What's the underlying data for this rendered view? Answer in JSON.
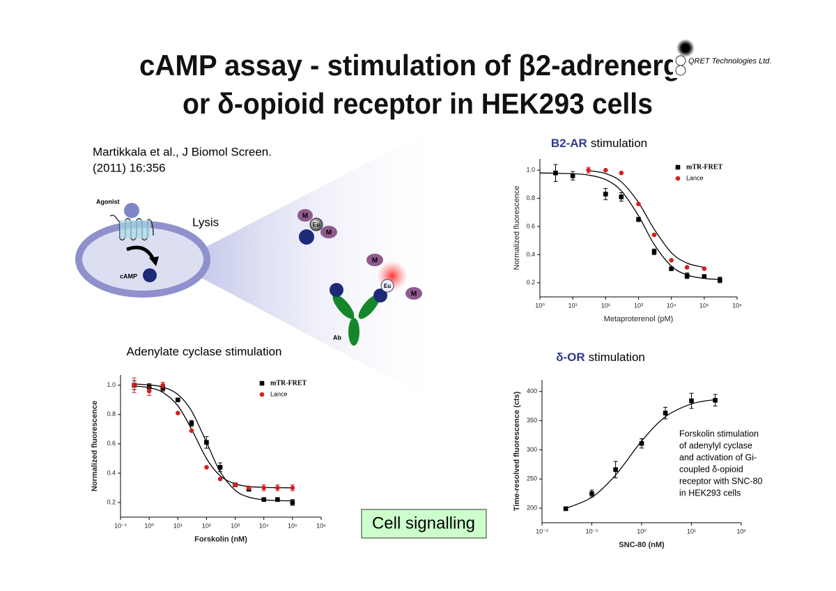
{
  "title_lines": [
    "cAMP assay - stimulation of β2-adrenergic",
    "or δ-opioid receptor in HEK293 cells"
  ],
  "logo": "QRET Technologies Ltd.",
  "citation_lines": [
    "Martikkala et al., J Biomol Screen.",
    "(2011) 16:356"
  ],
  "diagram": {
    "agonist": "Agonist",
    "lysis": "Lysis",
    "camp": "cAMP",
    "complex1": [
      "M",
      "Eu",
      "M"
    ],
    "complex2": [
      "M",
      "Eu",
      "M"
    ],
    "antibody": "Ab"
  },
  "note_lines": [
    "Forskolin stimulation",
    "of adenylyl cyclase",
    "and activation of Gi-",
    "coupled δ-opioid",
    "receptor with SNC-80",
    "in HEK293 cells"
  ],
  "button": "Cell signalling",
  "chart_data": [
    {
      "type": "scatter",
      "title_highlight": "B2-AR",
      "title": "stimulation",
      "x_label": "Metaproterenol (pM)",
      "y_label": "Normalized fluorescence",
      "xscale": "log",
      "xlim": [
        1,
        1000000
      ],
      "xticks": [
        {
          "value": 1,
          "label": "10⁰"
        },
        {
          "value": 10,
          "label": "10¹"
        },
        {
          "value": 100,
          "label": "10²"
        },
        {
          "value": 1000,
          "label": "10³"
        },
        {
          "value": 10000,
          "label": "10⁴"
        },
        {
          "value": 100000,
          "label": "10⁵"
        },
        {
          "value": 1000000,
          "label": "10⁶"
        }
      ],
      "ylim": [
        0.1,
        1.08
      ],
      "yticks": [
        0.2,
        0.4,
        0.6,
        0.8,
        {
          "value": 1,
          "label": "1.0"
        }
      ],
      "legend": "upper right",
      "series": [
        {
          "name": "mTR-FRET",
          "color": "#000000",
          "marker": "square",
          "x": [
            3,
            10,
            100,
            300,
            1000,
            3000,
            10000,
            30000,
            100000,
            300000
          ],
          "values": [
            0.98,
            0.96,
            0.83,
            0.81,
            0.65,
            0.42,
            0.3,
            0.25,
            0.245,
            0.22
          ],
          "errors": [
            0.06,
            0.03,
            0.04,
            0.03,
            0.015,
            0.02,
            0.01,
            0.02,
            0.01,
            0.02
          ],
          "fit": {
            "x": [
              1,
              3,
              10,
              30,
              100,
              300,
              1000,
              3000,
              10000,
              30000,
              100000,
              300000
            ],
            "values": [
              0.98,
              0.978,
              0.975,
              0.965,
              0.933,
              0.853,
              0.676,
              0.473,
              0.319,
              0.256,
              0.231,
              0.224
            ]
          }
        },
        {
          "name": "Lance",
          "color": "#d42020",
          "marker": "circle",
          "x": [
            30,
            100,
            300,
            1000,
            3000,
            10000,
            30000,
            100000
          ],
          "values": [
            1.0,
            1.0,
            0.98,
            0.76,
            0.54,
            0.36,
            0.31,
            0.3
          ],
          "errors": [
            0.02,
            null,
            null,
            null,
            null,
            null,
            null,
            null
          ],
          "fit": {
            "x": [
              30,
              100,
              300,
              1000,
              3000,
              10000,
              30000,
              100000
            ],
            "values": [
              0.997,
              0.976,
              0.917,
              0.77,
              0.581,
              0.414,
              0.34,
              0.309
            ]
          }
        }
      ]
    },
    {
      "type": "scatter",
      "title": "Adenylate cyclase stimulation",
      "x_label": "Forskolin (nM)",
      "y_label": "Normalized fluorescence",
      "xscale": "log",
      "xlim": [
        0.1,
        1000000
      ],
      "xticks": [
        {
          "value": 0.1,
          "label": "10⁻¹"
        },
        {
          "value": 1,
          "label": "10⁰"
        },
        {
          "value": 10,
          "label": "10¹"
        },
        {
          "value": 100,
          "label": "10²"
        },
        {
          "value": 1000,
          "label": "10³"
        },
        {
          "value": 10000,
          "label": "10⁴"
        },
        {
          "value": 100000,
          "label": "10⁵"
        },
        {
          "value": 1000000,
          "label": "10⁶"
        }
      ],
      "ylim": [
        0.1,
        1.07
      ],
      "yticks": [
        0.2,
        0.4,
        0.6,
        0.8,
        {
          "value": 1,
          "label": "1.0"
        }
      ],
      "legend": "upper right",
      "series": [
        {
          "name": "mTR-FRET",
          "color": "#000000",
          "marker": "square",
          "x": [
            0.3,
            1,
            3,
            10,
            30,
            100,
            300,
            1000,
            3000,
            10000,
            30000,
            100000
          ],
          "values": [
            1.0,
            0.99,
            0.98,
            0.9,
            0.74,
            0.61,
            0.44,
            0.32,
            0.29,
            0.22,
            0.22,
            0.2
          ],
          "errors": [
            0.03,
            0.02,
            0.02,
            0.01,
            0.02,
            0.04,
            0.03,
            0.01,
            0.01,
            0.01,
            0.01,
            0.02
          ],
          "fit": {
            "x": [
              0.3,
              1,
              3,
              10,
              30,
              100,
              300,
              1000,
              3000,
              10000,
              30000,
              100000
            ],
            "values": [
              1.008,
              1.002,
              0.987,
              0.937,
              0.825,
              0.61,
              0.41,
              0.283,
              0.236,
              0.218,
              0.213,
              0.211
            ]
          }
        },
        {
          "name": "Lance",
          "color": "#d42020",
          "marker": "circle",
          "x": [
            0.3,
            1,
            3,
            10,
            30,
            100,
            300,
            1000,
            3000,
            10000,
            30000,
            100000
          ],
          "values": [
            1.0,
            0.96,
            1.0,
            0.81,
            0.69,
            0.44,
            0.36,
            0.32,
            0.3,
            0.3,
            0.3,
            0.3
          ],
          "errors": [
            0.05,
            0.03,
            0.02,
            null,
            null,
            null,
            null,
            null,
            null,
            0.02,
            0.02,
            0.02
          ],
          "fit": {
            "x": [
              0.3,
              1,
              3,
              10,
              30,
              100,
              300,
              1000,
              3000,
              10000,
              30000,
              100000
            ],
            "values": [
              0.995,
              0.983,
              0.951,
              0.86,
              0.7,
              0.5,
              0.382,
              0.327,
              0.309,
              0.303,
              0.301,
              0.3
            ]
          }
        }
      ]
    },
    {
      "type": "scatter",
      "title_highlight": "δ-OR",
      "title": "stimulation",
      "x_label": "SNC-80 (nM)",
      "y_label": "Time-resolved fluorescence (cts)",
      "xscale": "log",
      "xlim": [
        0.01,
        100
      ],
      "xticks": [
        {
          "value": 0.01,
          "label": "10⁻²"
        },
        {
          "value": 0.1,
          "label": "10⁻¹"
        },
        {
          "value": 1,
          "label": "10⁰"
        },
        {
          "value": 10,
          "label": "10¹"
        },
        {
          "value": 100,
          "label": "10²"
        }
      ],
      "ylim": [
        175,
        420
      ],
      "yticks": [
        200,
        250,
        300,
        350,
        400
      ],
      "series": [
        {
          "color": "#000000",
          "marker": "square",
          "x": [
            0.03,
            0.1,
            0.3,
            1,
            3,
            10,
            30
          ],
          "values": [
            199,
            225,
            266,
            311,
            363,
            384,
            385
          ],
          "errors": [
            2,
            6,
            14,
            8,
            10,
            13,
            10
          ],
          "fit": {
            "x": [
              0.03,
              0.1,
              0.3,
              1,
              3,
              10,
              30
            ],
            "values": [
              199.5,
              218.6,
              256.7,
              315,
              356.7,
              378.7,
              386.1
            ]
          }
        }
      ]
    }
  ]
}
